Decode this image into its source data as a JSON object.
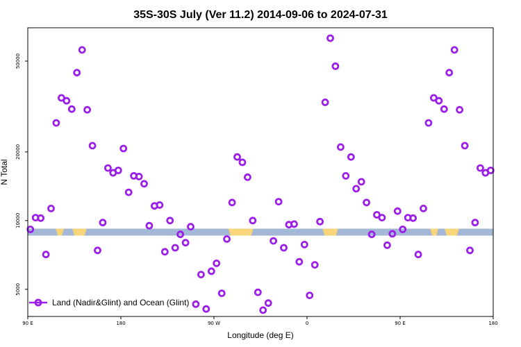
{
  "chart_data": {
    "type": "scatter",
    "title": "35S-30S July (Ver 11.2)   2014-09-06 to 2024-07-31",
    "xlabel": "Longitude (deg E)",
    "ylabel": "N Total",
    "y_scale": "log",
    "xlim": [
      90,
      540
    ],
    "ylim": [
      3800,
      70000
    ],
    "x_ticks": [
      {
        "value": 90,
        "label": "90 E"
      },
      {
        "value": 180,
        "label": "180"
      },
      {
        "value": 270,
        "label": "90 W"
      },
      {
        "value": 360,
        "label": "0"
      },
      {
        "value": 450,
        "label": "90 E"
      },
      {
        "value": 540,
        "label": "180"
      }
    ],
    "y_ticks": [
      {
        "value": 5000,
        "label": "5000"
      },
      {
        "value": 10000,
        "label": "10000"
      },
      {
        "value": 20000,
        "label": "20000"
      },
      {
        "value": 50000,
        "label": "50000"
      }
    ],
    "series": [
      {
        "name": "Land (Nadir&Glint) and Ocean (Glint)",
        "color": "#9B1FE8",
        "points": [
          [
            92.5,
            9150
          ],
          [
            97.5,
            10300
          ],
          [
            102.5,
            10250
          ],
          [
            107.5,
            7100
          ],
          [
            112.5,
            11300
          ],
          [
            117.5,
            26800
          ],
          [
            122.5,
            34500
          ],
          [
            127.5,
            33500
          ],
          [
            132.5,
            30800
          ],
          [
            137.5,
            44500
          ],
          [
            142.5,
            56000
          ],
          [
            147.5,
            30600
          ],
          [
            152.5,
            21300
          ],
          [
            157.5,
            7400
          ],
          [
            162.5,
            9800
          ],
          [
            167.5,
            17000
          ],
          [
            172.5,
            16200
          ],
          [
            177.5,
            16600
          ],
          [
            182.5,
            20700
          ],
          [
            187.5,
            13300
          ],
          [
            192.5,
            15700
          ],
          [
            197.5,
            15600
          ],
          [
            202.5,
            14500
          ],
          [
            207.5,
            9500
          ],
          [
            212.5,
            11600
          ],
          [
            217.5,
            11700
          ],
          [
            222.5,
            7300
          ],
          [
            227.5,
            10000
          ],
          [
            232.5,
            7600
          ],
          [
            237.5,
            8700
          ],
          [
            242.5,
            8000
          ],
          [
            247.5,
            9400
          ],
          [
            252.5,
            4300
          ],
          [
            257.5,
            5800
          ],
          [
            262.5,
            4100
          ],
          [
            267.5,
            6000
          ],
          [
            272.5,
            6500
          ],
          [
            277.5,
            4800
          ],
          [
            282.5,
            8300
          ],
          [
            287.5,
            12000
          ],
          [
            292.5,
            19000
          ],
          [
            297.5,
            18000
          ],
          [
            302.5,
            15500
          ],
          [
            307.5,
            10000
          ],
          [
            312.5,
            4850
          ],
          [
            317.5,
            4050
          ],
          [
            322.5,
            4350
          ],
          [
            327.5,
            8150
          ],
          [
            332.5,
            12100
          ],
          [
            337.5,
            7600
          ],
          [
            342.5,
            9600
          ],
          [
            347.5,
            9650
          ],
          [
            352.5,
            6600
          ],
          [
            357.5,
            7850
          ],
          [
            362.5,
            4700
          ],
          [
            367.5,
            6400
          ],
          [
            372.5,
            9900
          ],
          [
            377.5,
            33000
          ],
          [
            382.5,
            63000
          ],
          [
            387.5,
            47500
          ],
          [
            392.5,
            21000
          ],
          [
            397.5,
            15700
          ],
          [
            402.5,
            19000
          ],
          [
            407.5,
            13800
          ],
          [
            412.5,
            14800
          ],
          [
            417.5,
            12000
          ],
          [
            422.5,
            8700
          ],
          [
            427.5,
            10600
          ],
          [
            432.5,
            10300
          ],
          [
            437.5,
            7800
          ],
          [
            442.5,
            8750
          ],
          [
            447.5,
            11000
          ],
          [
            452.5,
            9150
          ],
          [
            457.5,
            10300
          ],
          [
            462.5,
            10250
          ],
          [
            467.5,
            7100
          ],
          [
            472.5,
            11300
          ],
          [
            477.5,
            26800
          ],
          [
            482.5,
            34500
          ],
          [
            487.5,
            33500
          ],
          [
            492.5,
            30800
          ],
          [
            497.5,
            44500
          ],
          [
            502.5,
            56000
          ],
          [
            507.5,
            30600
          ],
          [
            512.5,
            21300
          ],
          [
            517.5,
            7400
          ],
          [
            522.5,
            9800
          ],
          [
            527.5,
            17000
          ],
          [
            532.5,
            16200
          ],
          [
            537.5,
            16600
          ]
        ]
      }
    ],
    "band": {
      "y_value": 8900,
      "ocean_color": "#A3B7D6",
      "land_color": "#F8D47A",
      "land_spans": [
        [
          117,
          125
        ],
        [
          133,
          147
        ],
        [
          284,
          308
        ],
        [
          375,
          390
        ],
        [
          479,
          487
        ],
        [
          493,
          507
        ]
      ]
    },
    "legend": {
      "position": "bottom-left",
      "label": "Land (Nadir&Glint) and Ocean (Glint)"
    }
  }
}
